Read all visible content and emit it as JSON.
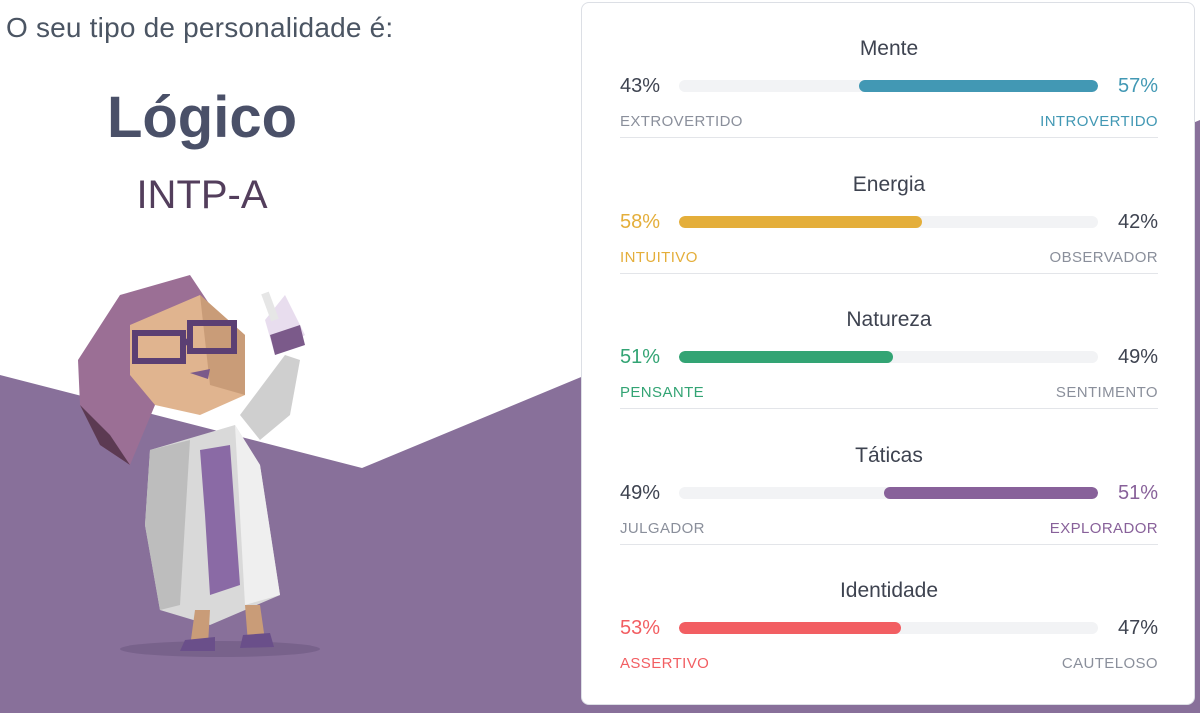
{
  "intro": "O seu tipo de personalidade é:",
  "type_name": "Lógico",
  "type_code": "INTP-A",
  "colors": {
    "purple_bg": "#88709a",
    "mind": "#4298b4",
    "energy": "#e4ae3a",
    "nature": "#33a474",
    "tactics": "#88619a",
    "identity": "#f25e62"
  },
  "traits": [
    {
      "title": "Mente",
      "left_pct": "43%",
      "right_pct": "57%",
      "left_label": "EXTROVERTIDO",
      "right_label": "INTROVERTIDO",
      "dominant": "right",
      "value": 0.57,
      "color": "#4298b4"
    },
    {
      "title": "Energia",
      "left_pct": "58%",
      "right_pct": "42%",
      "left_label": "INTUITIVO",
      "right_label": "OBSERVADOR",
      "dominant": "left",
      "value": 0.58,
      "color": "#e4ae3a"
    },
    {
      "title": "Natureza",
      "left_pct": "51%",
      "right_pct": "49%",
      "left_label": "PENSANTE",
      "right_label": "SENTIMENTO",
      "dominant": "left",
      "value": 0.51,
      "color": "#33a474"
    },
    {
      "title": "Táticas",
      "left_pct": "49%",
      "right_pct": "51%",
      "left_label": "JULGADOR",
      "right_label": "EXPLORADOR",
      "dominant": "right",
      "value": 0.51,
      "color": "#88619a"
    },
    {
      "title": "Identidade",
      "left_pct": "53%",
      "right_pct": "47%",
      "left_label": "ASSERTIVO",
      "right_label": "CAUTELOSO",
      "dominant": "left",
      "value": 0.53,
      "color": "#f25e62"
    }
  ]
}
